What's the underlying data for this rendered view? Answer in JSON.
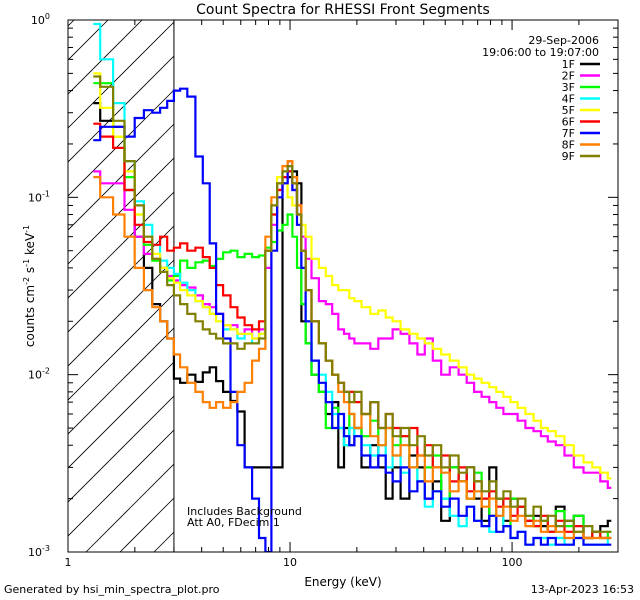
{
  "chart_data": {
    "type": "line",
    "title": "Count Spectra for RHESSI Front Segments",
    "xlabel": "Energy (keV)",
    "ylabel_main": "counts cm",
    "ylabel_exp1": "-2",
    "ylabel_mid": " s",
    "ylabel_exp2": "-1",
    "ylabel_end": " keV",
    "ylabel_exp3": "-1",
    "xscale": "log",
    "yscale": "log",
    "xlim": [
      1.0,
      300.0
    ],
    "ylim": [
      0.001,
      1.0
    ],
    "x_ticks": [
      {
        "value": 1,
        "label": "1"
      },
      {
        "value": 10,
        "label": "10"
      },
      {
        "value": 100,
        "label": "100"
      }
    ],
    "y_ticks": [
      {
        "value": 1,
        "base": "10",
        "exp": "0"
      },
      {
        "value": 0.1,
        "base": "10",
        "exp": "-1"
      },
      {
        "value": 0.01,
        "base": "10",
        "exp": "-2"
      },
      {
        "value": 0.001,
        "base": "10",
        "exp": "-3"
      }
    ],
    "date": "29-Sep-2006",
    "time_range": "19:06:00 to 19:07:00",
    "hatch_region": {
      "x_max": 3.0
    },
    "annotations": [
      "Includes Background",
      "Att A0, FDecim 1"
    ],
    "x": [
      1.3,
      1.5,
      1.7,
      1.9,
      2.1,
      2.3,
      2.5,
      2.7,
      2.9,
      3.1,
      3.3,
      3.6,
      3.9,
      4.2,
      4.5,
      4.8,
      5.2,
      5.6,
      6.0,
      6.5,
      7.0,
      7.5,
      8.0,
      8.5,
      9.0,
      9.5,
      10.0,
      10.5,
      11.0,
      11.5,
      12.0,
      13.0,
      14.0,
      15.0,
      16.0,
      17.0,
      18.0,
      19.0,
      20.0,
      22.0,
      24.0,
      26.0,
      28.0,
      30.0,
      33.0,
      36.0,
      39.0,
      42.0,
      46.0,
      50.0,
      55.0,
      60.0,
      65.0,
      70.0,
      76.0,
      82.0,
      88.0,
      95.0,
      102.0,
      110.0,
      120.0,
      130.0,
      140.0,
      150.0,
      165.0,
      180.0,
      200.0,
      220.0,
      240.0,
      260.0,
      280.0
    ],
    "series": [
      {
        "name": "1F",
        "color": "#000000",
        "values": [
          0.34,
          0.27,
          0.25,
          0.11,
          0.06,
          0.04,
          0.025,
          0.02,
          0.016,
          0.0095,
          0.009,
          0.01,
          0.0091,
          0.0103,
          0.011,
          0.0092,
          0.008,
          0.0071,
          0.0062,
          0.003,
          0.003,
          0.003,
          0.003,
          0.003,
          0.003,
          0.12,
          0.13,
          0.14,
          0.12,
          0.02,
          0.015,
          0.01,
          0.008,
          0.006,
          0.007,
          0.003,
          0.005,
          0.004,
          0.005,
          0.003,
          0.004,
          0.003,
          0.002,
          0.003,
          0.002,
          0.0035,
          0.003,
          0.002,
          0.0025,
          0.0015,
          0.003,
          0.0025,
          0.003,
          0.002,
          0.0015,
          0.003,
          0.002,
          0.0015,
          0.002,
          0.0018,
          0.0015,
          0.0016,
          0.0014,
          0.0013,
          0.0018,
          0.0015,
          0.0016,
          0.0012,
          0.0013,
          0.0014,
          0.0015
        ]
      },
      {
        "name": "2F",
        "color": "#ff00ff",
        "values": [
          0.14,
          0.12,
          0.12,
          0.085,
          0.06,
          0.048,
          0.045,
          0.04,
          0.036,
          0.034,
          0.032,
          0.031,
          0.028,
          0.025,
          0.024,
          0.022,
          0.019,
          0.019,
          0.017,
          0.018,
          0.016,
          0.018,
          0.04,
          0.07,
          0.11,
          0.13,
          0.14,
          0.11,
          0.09,
          0.06,
          0.045,
          0.035,
          0.026,
          0.025,
          0.022,
          0.018,
          0.017,
          0.016,
          0.015,
          0.015,
          0.014,
          0.016,
          0.016,
          0.018,
          0.017,
          0.015,
          0.013,
          0.016,
          0.012,
          0.01,
          0.011,
          0.01,
          0.009,
          0.008,
          0.0075,
          0.007,
          0.0065,
          0.006,
          0.006,
          0.0055,
          0.005,
          0.0048,
          0.0045,
          0.0042,
          0.004,
          0.0035,
          0.003,
          0.0028,
          0.0028,
          0.0025,
          0.0023
        ]
      },
      {
        "name": "3F",
        "color": "#00ff00",
        "values": [
          0.44,
          0.44,
          0.22,
          0.13,
          0.08,
          0.054,
          0.044,
          0.04,
          0.034,
          0.036,
          0.044,
          0.04,
          0.043,
          0.044,
          0.041,
          0.045,
          0.049,
          0.05,
          0.046,
          0.048,
          0.046,
          0.047,
          0.052,
          0.056,
          0.065,
          0.07,
          0.08,
          0.06,
          0.04,
          0.025,
          0.015,
          0.01,
          0.008,
          0.005,
          0.0065,
          0.005,
          0.004,
          0.006,
          0.005,
          0.0045,
          0.0055,
          0.004,
          0.005,
          0.004,
          0.0045,
          0.003,
          0.0025,
          0.003,
          0.0035,
          0.002,
          0.003,
          0.0025,
          0.002,
          0.0028,
          0.002,
          0.0016,
          0.002,
          0.0014,
          0.002,
          0.0018,
          0.0016,
          0.0014,
          0.0015,
          0.0013,
          0.0017,
          0.0014,
          0.0016,
          0.0012,
          0.0013,
          0.0012,
          0.0013
        ]
      },
      {
        "name": "4F",
        "color": "#00ffff",
        "values": [
          0.95,
          0.6,
          0.34,
          0.16,
          0.095,
          0.07,
          0.054,
          0.044,
          0.04,
          0.037,
          0.033,
          0.03,
          0.026,
          0.024,
          0.022,
          0.02,
          0.018,
          0.018,
          0.016,
          0.017,
          0.015,
          0.017,
          0.05,
          0.08,
          0.12,
          0.14,
          0.15,
          0.12,
          0.08,
          0.04,
          0.02,
          0.012,
          0.01,
          0.008,
          0.006,
          0.005,
          0.004,
          0.005,
          0.0045,
          0.004,
          0.0035,
          0.004,
          0.003,
          0.0035,
          0.0028,
          0.003,
          0.0025,
          0.0018,
          0.0022,
          0.002,
          0.0016,
          0.0014,
          0.0018,
          0.0015,
          0.0014,
          0.0013,
          0.0016,
          0.0014,
          0.0012,
          0.0013,
          0.0011,
          0.0012,
          0.0012,
          0.0011,
          0.0012,
          0.0011,
          0.0012,
          0.0011,
          0.0011,
          0.0011,
          0.0012
        ]
      },
      {
        "name": "5F",
        "color": "#ffff00",
        "values": [
          0.5,
          0.32,
          0.22,
          0.14,
          0.08,
          0.06,
          0.048,
          0.04,
          0.035,
          0.033,
          0.03,
          0.028,
          0.026,
          0.024,
          0.022,
          0.02,
          0.019,
          0.018,
          0.017,
          0.017,
          0.016,
          0.017,
          0.05,
          0.09,
          0.13,
          0.12,
          0.1,
          0.09,
          0.08,
          0.07,
          0.06,
          0.045,
          0.04,
          0.036,
          0.032,
          0.03,
          0.03,
          0.027,
          0.026,
          0.024,
          0.022,
          0.023,
          0.021,
          0.02,
          0.018,
          0.017,
          0.016,
          0.015,
          0.014,
          0.013,
          0.012,
          0.011,
          0.01,
          0.0095,
          0.009,
          0.0085,
          0.008,
          0.0075,
          0.007,
          0.0065,
          0.006,
          0.0055,
          0.005,
          0.0048,
          0.0045,
          0.004,
          0.0035,
          0.0032,
          0.003,
          0.0028,
          0.0026
        ]
      },
      {
        "name": "6F",
        "color": "#ff0000",
        "values": [
          0.26,
          0.22,
          0.19,
          0.11,
          0.07,
          0.056,
          0.054,
          0.06,
          0.05,
          0.052,
          0.055,
          0.05,
          0.052,
          0.046,
          0.04,
          0.032,
          0.028,
          0.024,
          0.021,
          0.019,
          0.018,
          0.02,
          0.05,
          0.08,
          0.11,
          0.13,
          0.14,
          0.12,
          0.08,
          0.05,
          0.03,
          0.02,
          0.015,
          0.012,
          0.01,
          0.009,
          0.008,
          0.008,
          0.007,
          0.006,
          0.007,
          0.005,
          0.006,
          0.005,
          0.0045,
          0.005,
          0.0035,
          0.004,
          0.003,
          0.0035,
          0.0025,
          0.003,
          0.0022,
          0.0025,
          0.002,
          0.0022,
          0.0018,
          0.002,
          0.0016,
          0.0018,
          0.0015,
          0.0014,
          0.0016,
          0.0013,
          0.0015,
          0.0013,
          0.0014,
          0.0012,
          0.0013,
          0.0012,
          0.0012
        ]
      },
      {
        "name": "7F",
        "color": "#0000ff",
        "values": [
          0.21,
          0.25,
          0.25,
          0.22,
          0.28,
          0.31,
          0.3,
          0.32,
          0.35,
          0.4,
          0.41,
          0.37,
          0.17,
          0.12,
          0.055,
          0.022,
          0.016,
          0.008,
          0.004,
          0.003,
          0.002,
          0.0012,
          0.001,
          0.05,
          0.1,
          0.12,
          0.16,
          0.11,
          0.07,
          0.04,
          0.02,
          0.012,
          0.009,
          0.007,
          0.005,
          0.006,
          0.0045,
          0.004,
          0.0045,
          0.0035,
          0.003,
          0.0035,
          0.0028,
          0.0025,
          0.003,
          0.0022,
          0.0025,
          0.002,
          0.0022,
          0.0018,
          0.002,
          0.0016,
          0.0018,
          0.0015,
          0.0014,
          0.0016,
          0.0013,
          0.0014,
          0.0012,
          0.0013,
          0.0011,
          0.0012,
          0.0011,
          0.0012,
          0.0011,
          0.0011,
          0.0012,
          0.0011,
          0.0011,
          0.0011,
          0.0011
        ]
      },
      {
        "name": "8F",
        "color": "#ff8000",
        "values": [
          0.13,
          0.1,
          0.08,
          0.06,
          0.04,
          0.03,
          0.024,
          0.02,
          0.016,
          0.013,
          0.011,
          0.009,
          0.008,
          0.007,
          0.0065,
          0.007,
          0.0065,
          0.007,
          0.008,
          0.009,
          0.012,
          0.014,
          0.06,
          0.1,
          0.12,
          0.15,
          0.16,
          0.13,
          0.09,
          0.05,
          0.03,
          0.02,
          0.015,
          0.012,
          0.01,
          0.008,
          0.007,
          0.006,
          0.005,
          0.006,
          0.0045,
          0.004,
          0.005,
          0.0035,
          0.004,
          0.003,
          0.0035,
          0.0025,
          0.003,
          0.0028,
          0.0022,
          0.0025,
          0.002,
          0.0022,
          0.0018,
          0.002,
          0.0016,
          0.0018,
          0.0015,
          0.0016,
          0.0014,
          0.0015,
          0.0013,
          0.0014,
          0.0013,
          0.0012,
          0.0013,
          0.0012,
          0.0012,
          0.0012,
          0.0012
        ]
      },
      {
        "name": "9F",
        "color": "#808000",
        "values": [
          0.48,
          0.42,
          0.27,
          0.16,
          0.09,
          0.06,
          0.045,
          0.038,
          0.032,
          0.028,
          0.025,
          0.022,
          0.02,
          0.018,
          0.017,
          0.016,
          0.015,
          0.015,
          0.014,
          0.015,
          0.015,
          0.016,
          0.05,
          0.09,
          0.12,
          0.14,
          0.15,
          0.12,
          0.08,
          0.05,
          0.03,
          0.02,
          0.015,
          0.012,
          0.01,
          0.009,
          0.008,
          0.007,
          0.008,
          0.006,
          0.007,
          0.005,
          0.006,
          0.0045,
          0.005,
          0.004,
          0.0045,
          0.0035,
          0.004,
          0.003,
          0.0035,
          0.0028,
          0.003,
          0.0025,
          0.0022,
          0.0025,
          0.002,
          0.0022,
          0.0018,
          0.002,
          0.0016,
          0.0018,
          0.0015,
          0.0016,
          0.0014,
          0.0015,
          0.0013,
          0.0014,
          0.0013,
          0.0013,
          0.0013
        ]
      }
    ]
  },
  "footer": {
    "left": "Generated by hsi_min_spectra_plot.pro",
    "right": "13-Apr-2023 16:53"
  }
}
